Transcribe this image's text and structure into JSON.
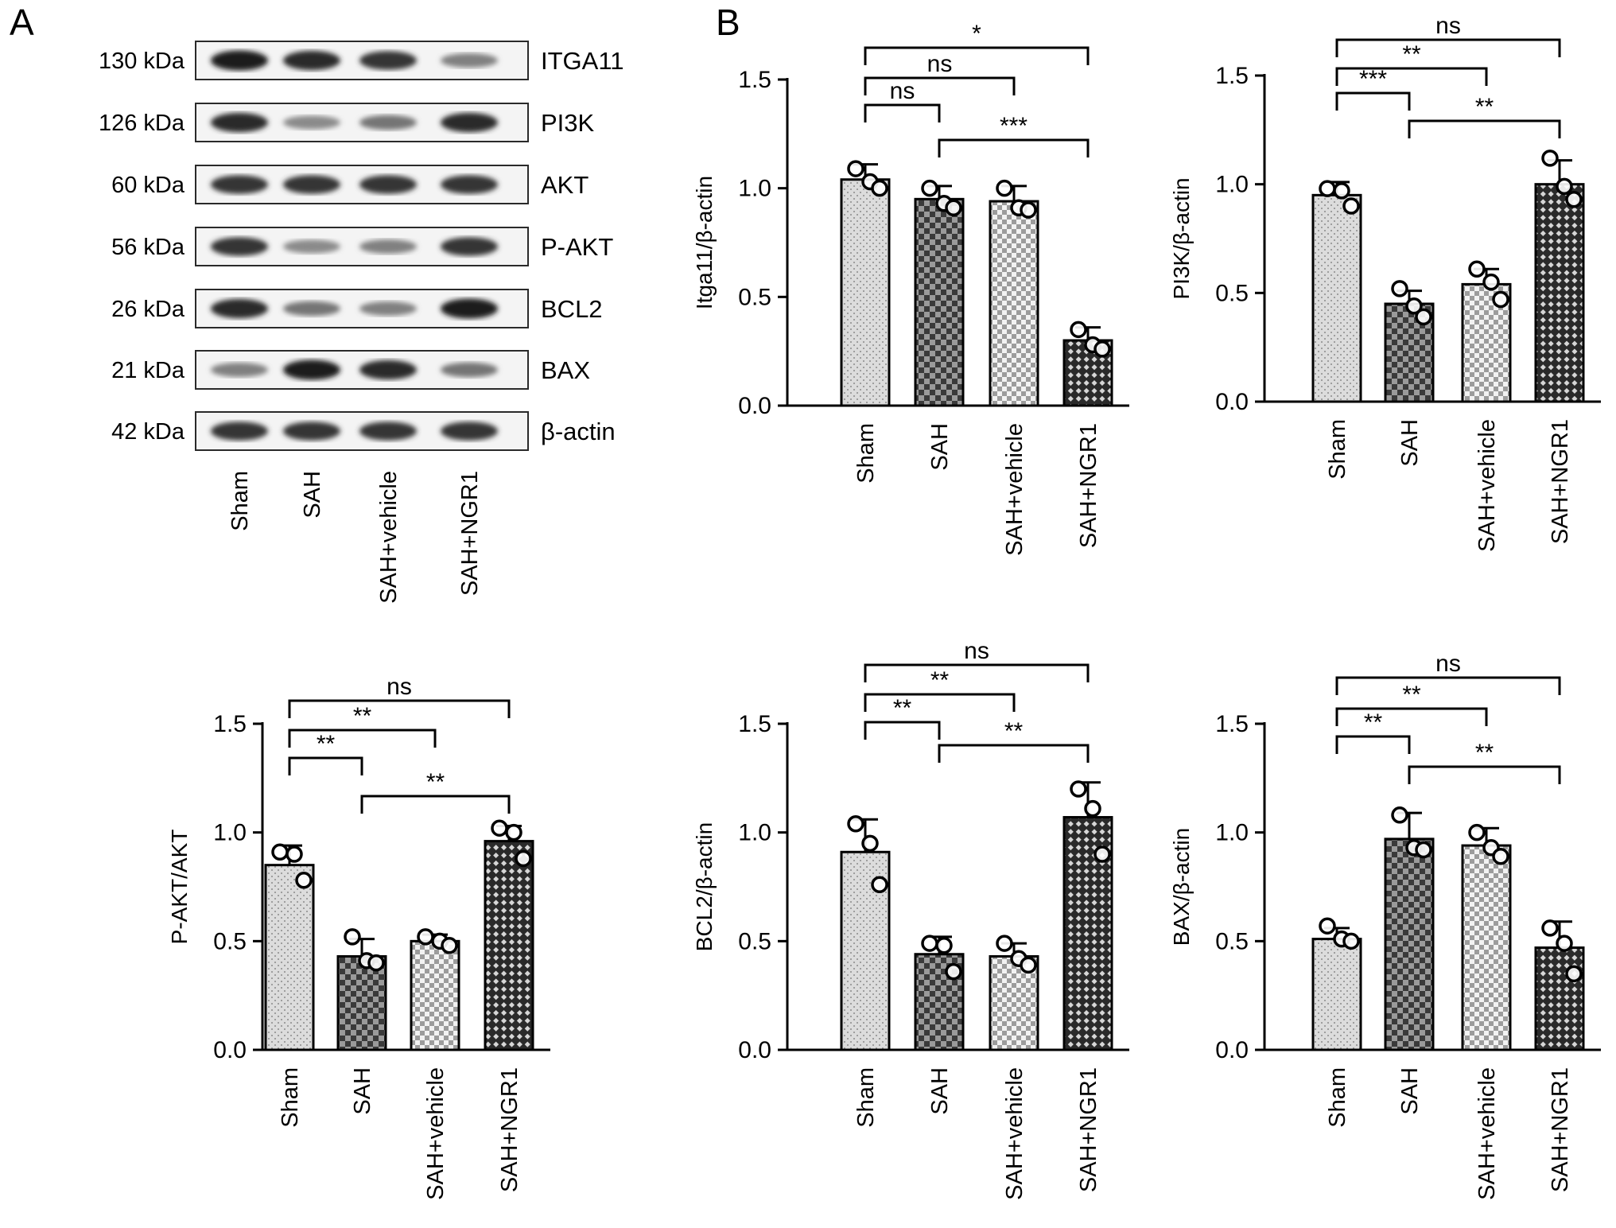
{
  "panels": {
    "A": "A",
    "B": "B"
  },
  "blot": {
    "lanes": [
      "Sham",
      "SAH",
      "SAH+vehicle",
      "SAH+NGR1"
    ],
    "rows": [
      {
        "kda": "130 kDa",
        "protein": "ITGA11",
        "intensity": [
          0.95,
          0.9,
          0.85,
          0.5
        ]
      },
      {
        "kda": "126 kDa",
        "protein": "PI3K",
        "intensity": [
          0.9,
          0.45,
          0.55,
          0.9
        ]
      },
      {
        "kda": "60 kDa",
        "protein": "AKT",
        "intensity": [
          0.85,
          0.85,
          0.85,
          0.85
        ]
      },
      {
        "kda": "56 kDa",
        "protein": "P-AKT",
        "intensity": [
          0.85,
          0.45,
          0.5,
          0.85
        ]
      },
      {
        "kda": "26 kDa",
        "protein": "BCL2",
        "intensity": [
          0.9,
          0.55,
          0.5,
          0.95
        ]
      },
      {
        "kda": "21 kDa",
        "protein": "BAX",
        "intensity": [
          0.5,
          0.95,
          0.9,
          0.55
        ]
      },
      {
        "kda": "42 kDa",
        "protein": "β-actin",
        "intensity": [
          0.85,
          0.85,
          0.85,
          0.85
        ]
      }
    ]
  },
  "chart_data": [
    {
      "type": "bar",
      "ylabel": "Itga11/β-actin",
      "ylim": [
        0,
        1.5
      ],
      "yticks": [
        "0.0",
        "0.5",
        "1.0",
        "1.5"
      ],
      "categories": [
        "Sham",
        "SAH",
        "SAH+vehicle",
        "SAH+NGR1"
      ],
      "values": [
        1.04,
        0.95,
        0.94,
        0.3
      ],
      "sd": [
        0.07,
        0.06,
        0.07,
        0.06
      ],
      "points": [
        [
          1.09,
          1.03,
          1.0
        ],
        [
          1.0,
          0.93,
          0.91
        ],
        [
          1.0,
          0.91,
          0.9
        ],
        [
          0.35,
          0.28,
          0.26
        ]
      ],
      "comparisons": [
        {
          "from": 0,
          "to": 1,
          "label": "ns"
        },
        {
          "from": 0,
          "to": 2,
          "label": "ns"
        },
        {
          "from": 0,
          "to": 3,
          "label": "*"
        },
        {
          "from": 1,
          "to": 3,
          "label": "***"
        }
      ]
    },
    {
      "type": "bar",
      "ylabel": "PI3K/β-actin",
      "ylim": [
        0,
        1.5
      ],
      "yticks": [
        "0.0",
        "0.5",
        "1.0",
        "1.5"
      ],
      "categories": [
        "Sham",
        "SAH",
        "SAH+vehicle",
        "SAH+NGR1"
      ],
      "values": [
        0.95,
        0.45,
        0.54,
        1.0
      ],
      "sd": [
        0.06,
        0.06,
        0.07,
        0.11
      ],
      "points": [
        [
          0.98,
          0.97,
          0.9
        ],
        [
          0.52,
          0.44,
          0.39
        ],
        [
          0.61,
          0.55,
          0.47
        ],
        [
          1.12,
          0.99,
          0.93
        ]
      ],
      "comparisons": [
        {
          "from": 0,
          "to": 1,
          "label": "***"
        },
        {
          "from": 0,
          "to": 2,
          "label": "**"
        },
        {
          "from": 0,
          "to": 3,
          "label": "ns"
        },
        {
          "from": 1,
          "to": 3,
          "label": "**"
        }
      ]
    },
    {
      "type": "bar",
      "ylabel": "P-AKT/AKT",
      "ylim": [
        0,
        1.5
      ],
      "yticks": [
        "0.0",
        "0.5",
        "1.0",
        "1.5"
      ],
      "categories": [
        "Sham",
        "SAH",
        "SAH+vehicle",
        "SAH+NGR1"
      ],
      "values": [
        0.85,
        0.43,
        0.5,
        0.96
      ],
      "sd": [
        0.09,
        0.08,
        0.03,
        0.07
      ],
      "points": [
        [
          0.91,
          0.9,
          0.78
        ],
        [
          0.52,
          0.41,
          0.4
        ],
        [
          0.52,
          0.5,
          0.48
        ],
        [
          1.02,
          1.0,
          0.88
        ]
      ],
      "comparisons": [
        {
          "from": 0,
          "to": 1,
          "label": "**"
        },
        {
          "from": 0,
          "to": 2,
          "label": "**"
        },
        {
          "from": 0,
          "to": 3,
          "label": "ns"
        },
        {
          "from": 1,
          "to": 3,
          "label": "**"
        }
      ]
    },
    {
      "type": "bar",
      "ylabel": "BCL2/β-actin",
      "ylim": [
        0,
        1.5
      ],
      "yticks": [
        "0.0",
        "0.5",
        "1.0",
        "1.5"
      ],
      "categories": [
        "Sham",
        "SAH",
        "SAH+vehicle",
        "SAH+NGR1"
      ],
      "values": [
        0.91,
        0.44,
        0.43,
        1.07
      ],
      "sd": [
        0.15,
        0.08,
        0.06,
        0.16
      ],
      "points": [
        [
          1.04,
          0.95,
          0.76
        ],
        [
          0.49,
          0.48,
          0.36
        ],
        [
          0.49,
          0.42,
          0.39
        ],
        [
          1.2,
          1.11,
          0.9
        ]
      ],
      "comparisons": [
        {
          "from": 0,
          "to": 1,
          "label": "**"
        },
        {
          "from": 0,
          "to": 2,
          "label": "**"
        },
        {
          "from": 0,
          "to": 3,
          "label": "ns"
        },
        {
          "from": 1,
          "to": 3,
          "label": "**"
        }
      ]
    },
    {
      "type": "bar",
      "ylabel": "BAX/β-actin",
      "ylim": [
        0,
        1.5
      ],
      "yticks": [
        "0.0",
        "0.5",
        "1.0",
        "1.5"
      ],
      "categories": [
        "Sham",
        "SAH",
        "SAH+vehicle",
        "SAH+NGR1"
      ],
      "values": [
        0.51,
        0.97,
        0.94,
        0.47
      ],
      "sd": [
        0.05,
        0.12,
        0.08,
        0.12
      ],
      "points": [
        [
          0.57,
          0.51,
          0.5
        ],
        [
          1.08,
          0.93,
          0.92
        ],
        [
          1.0,
          0.93,
          0.89
        ],
        [
          0.56,
          0.49,
          0.35
        ]
      ],
      "comparisons": [
        {
          "from": 0,
          "to": 1,
          "label": "**"
        },
        {
          "from": 0,
          "to": 2,
          "label": "**"
        },
        {
          "from": 0,
          "to": 3,
          "label": "ns"
        },
        {
          "from": 1,
          "to": 3,
          "label": "**"
        }
      ]
    }
  ]
}
